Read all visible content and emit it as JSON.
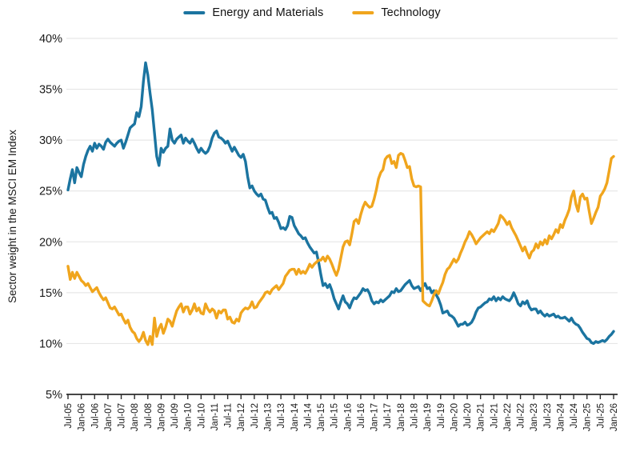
{
  "chart_data": {
    "type": "line",
    "title": "",
    "xlabel": "",
    "ylabel": "Sector weight in the MSCI EM Index",
    "ylim": [
      5,
      40
    ],
    "grid": "horizontal",
    "legend_position": "top-center",
    "x_label_rotation": -90,
    "x_start": "Jul-2005",
    "x_frequency": "monthly",
    "y_tick_values": [
      5,
      10,
      15,
      20,
      25,
      30,
      35,
      40
    ],
    "y_tick_labels": [
      "5%",
      "10%",
      "15%",
      "20%",
      "25%",
      "30%",
      "35%",
      "40%"
    ],
    "x_tick_labels": [
      "Jul-05",
      "Jan-06",
      "Jul-06",
      "Jan-07",
      "Jul-07",
      "Jan-08",
      "Jul-08",
      "Jan-09",
      "Jul-09",
      "Jan-10",
      "Jul-10",
      "Jan-11",
      "Jul-11",
      "Jan-12",
      "Jul-12",
      "Jan-13",
      "Jul-13",
      "Jan-14",
      "Jul-14",
      "Jan-15",
      "Jul-15",
      "Jan-16",
      "Jul-16",
      "Jan-17",
      "Jul-17",
      "Jan-18",
      "Jul-18",
      "Jan-19",
      "Jul-19",
      "Jan-20",
      "Jul-20",
      "Jan-21",
      "Jul-21",
      "Jan-22",
      "Jul-22",
      "Jan-23",
      "Jul-23",
      "Jan-24",
      "Jul-24",
      "Jan-25",
      "Jul-25",
      "Jan-26"
    ],
    "colors": {
      "energy_and_materials": "#1b74a0",
      "technology": "#f0a51d",
      "gridline": "#e2e2e2",
      "axis": "#2b2b2b",
      "text": "#1a1a1a"
    },
    "series": [
      {
        "name": "Energy and Materials",
        "color": "#1b74a0",
        "values": [
          25.1,
          26.2,
          27.1,
          25.8,
          27.3,
          26.8,
          26.4,
          27.6,
          28.4,
          29.0,
          29.4,
          28.9,
          29.7,
          29.2,
          29.6,
          29.4,
          29.1,
          29.8,
          30.1,
          29.8,
          29.6,
          29.4,
          29.7,
          29.9,
          30.0,
          29.2,
          29.8,
          30.5,
          31.2,
          31.4,
          31.6,
          32.7,
          32.3,
          33.3,
          35.8,
          37.6,
          36.4,
          34.6,
          33.0,
          30.7,
          28.4,
          27.5,
          29.2,
          28.8,
          29.2,
          29.4,
          31.1,
          30.0,
          29.7,
          30.1,
          30.3,
          30.5,
          29.7,
          30.2,
          29.9,
          29.7,
          30.1,
          29.7,
          29.2,
          28.8,
          29.2,
          28.9,
          28.7,
          28.9,
          29.4,
          30.2,
          30.7,
          30.9,
          30.3,
          30.2,
          30.0,
          29.7,
          29.9,
          29.4,
          28.9,
          29.3,
          28.9,
          28.5,
          28.3,
          28.6,
          27.9,
          26.4,
          25.3,
          25.5,
          25.0,
          24.7,
          24.5,
          24.7,
          24.2,
          24.1,
          23.4,
          22.8,
          22.9,
          22.3,
          22.4,
          21.9,
          21.3,
          21.4,
          21.2,
          21.6,
          22.5,
          22.4,
          21.6,
          21.2,
          20.8,
          20.6,
          20.3,
          20.4,
          19.9,
          19.5,
          19.2,
          18.9,
          19.0,
          18.0,
          16.8,
          15.7,
          15.9,
          15.5,
          15.8,
          15.2,
          14.4,
          13.9,
          13.4,
          14.1,
          14.7,
          14.1,
          13.9,
          13.5,
          14.1,
          14.5,
          14.4,
          14.7,
          15.0,
          15.4,
          15.2,
          15.3,
          14.9,
          14.2,
          13.9,
          14.1,
          14.0,
          14.3,
          14.1,
          14.3,
          14.5,
          14.7,
          15.1,
          15.0,
          15.4,
          15.1,
          15.2,
          15.5,
          15.8,
          16.0,
          16.2,
          15.7,
          15.4,
          15.5,
          15.6,
          15.2,
          15.6,
          15.9,
          15.4,
          15.5,
          15.0,
          15.2,
          14.8,
          14.4,
          13.8,
          13.0,
          13.1,
          13.2,
          12.8,
          12.7,
          12.5,
          12.1,
          11.7,
          11.9,
          11.9,
          12.1,
          11.8,
          11.9,
          12.1,
          12.5,
          13.1,
          13.5,
          13.6,
          13.8,
          14.0,
          14.1,
          14.4,
          14.3,
          14.6,
          14.2,
          14.5,
          14.3,
          14.6,
          14.4,
          14.3,
          14.2,
          14.5,
          15.0,
          14.5,
          13.9,
          13.7,
          14.1,
          13.9,
          14.2,
          13.6,
          13.3,
          13.4,
          13.4,
          13.0,
          13.2,
          12.9,
          12.7,
          12.9,
          12.7,
          12.8,
          12.9,
          12.6,
          12.7,
          12.5,
          12.5,
          12.6,
          12.4,
          12.2,
          12.5,
          12.1,
          11.9,
          11.8,
          11.5,
          11.1,
          10.8,
          10.5,
          10.4,
          10.1,
          10.0,
          10.2,
          10.1,
          10.2,
          10.3,
          10.2,
          10.4,
          10.7,
          10.9,
          11.2
        ]
      },
      {
        "name": "Technology",
        "color": "#f0a51d",
        "values": [
          17.6,
          16.3,
          17.0,
          16.4,
          17.0,
          16.6,
          16.2,
          16.0,
          15.7,
          15.9,
          15.5,
          15.1,
          15.3,
          15.5,
          15.0,
          14.6,
          14.3,
          14.5,
          14.0,
          13.5,
          13.4,
          13.6,
          13.2,
          12.8,
          12.9,
          12.4,
          12.0,
          12.3,
          11.6,
          11.2,
          11.0,
          10.5,
          10.2,
          10.5,
          11.1,
          10.3,
          9.9,
          10.7,
          9.9,
          12.5,
          10.7,
          11.5,
          11.9,
          11.0,
          11.6,
          12.4,
          12.2,
          11.7,
          12.5,
          13.2,
          13.6,
          13.9,
          13.1,
          13.6,
          13.6,
          12.9,
          13.3,
          13.9,
          13.2,
          13.5,
          13.0,
          12.9,
          13.9,
          13.4,
          13.1,
          13.4,
          13.2,
          12.5,
          13.2,
          13.0,
          13.3,
          13.3,
          12.4,
          12.6,
          12.1,
          12.0,
          12.4,
          12.2,
          13.0,
          13.3,
          13.5,
          13.4,
          13.6,
          14.1,
          13.5,
          13.6,
          14.0,
          14.3,
          14.6,
          15.0,
          15.1,
          14.9,
          15.3,
          15.5,
          15.7,
          15.3,
          15.6,
          15.9,
          16.6,
          16.9,
          17.2,
          17.3,
          17.3,
          16.8,
          17.3,
          16.9,
          17.1,
          16.9,
          17.3,
          17.8,
          17.5,
          17.8,
          18.0,
          18.2,
          18.2,
          18.5,
          18.1,
          18.6,
          18.3,
          17.8,
          17.2,
          16.7,
          17.3,
          18.4,
          19.5,
          20.0,
          20.1,
          19.7,
          20.8,
          22.0,
          22.2,
          21.8,
          22.7,
          23.4,
          23.9,
          23.6,
          23.4,
          23.5,
          24.2,
          25.1,
          26.2,
          26.8,
          27.1,
          28.1,
          28.4,
          28.5,
          27.7,
          27.9,
          27.3,
          28.5,
          28.7,
          28.6,
          28.0,
          27.3,
          27.4,
          26.2,
          25.5,
          25.4,
          25.5,
          25.4,
          14.2,
          14.0,
          13.8,
          13.7,
          14.2,
          14.8,
          15.2,
          14.9,
          15.5,
          16.0,
          16.8,
          17.3,
          17.5,
          17.9,
          18.3,
          18.0,
          18.3,
          18.9,
          19.4,
          20.0,
          20.4,
          21.0,
          20.7,
          20.3,
          19.8,
          20.1,
          20.4,
          20.6,
          20.8,
          21.0,
          20.8,
          21.2,
          21.0,
          21.4,
          21.8,
          22.6,
          22.4,
          22.1,
          21.7,
          22.0,
          21.4,
          21.0,
          20.6,
          20.1,
          19.6,
          19.1,
          19.5,
          18.9,
          18.4,
          19.0,
          19.2,
          19.8,
          19.4,
          20.0,
          19.7,
          20.2,
          19.8,
          20.6,
          20.3,
          20.7,
          21.2,
          20.9,
          21.7,
          21.4,
          22.1,
          22.6,
          23.2,
          24.4,
          25.0,
          23.7,
          23.0,
          24.4,
          24.7,
          24.2,
          24.3,
          23.0,
          21.8,
          22.3,
          22.9,
          23.4,
          24.5,
          24.8,
          25.2,
          25.8,
          27.0,
          28.2,
          28.4
        ]
      }
    ]
  }
}
